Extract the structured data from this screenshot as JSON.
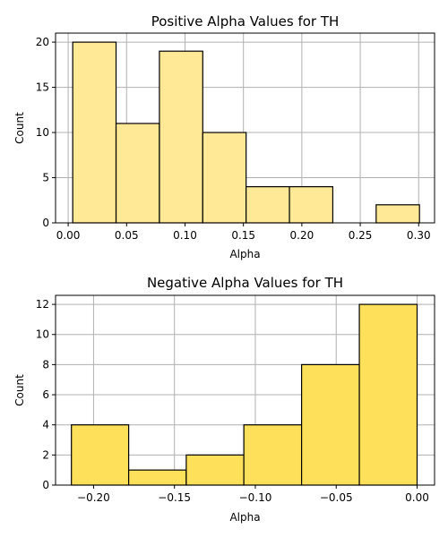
{
  "chart_data": [
    {
      "type": "bar",
      "title": "Positive Alpha Values for TH",
      "xlabel": "Alpha",
      "ylabel": "Count",
      "xlim": [
        -0.0108,
        0.3136
      ],
      "ylim": [
        0,
        21
      ],
      "xticks": [
        0.0,
        0.05,
        0.1,
        0.15,
        0.2,
        0.25,
        0.3
      ],
      "xtick_labels": [
        "0.00",
        "0.05",
        "0.10",
        "0.15",
        "0.20",
        "0.25",
        "0.30"
      ],
      "yticks": [
        0,
        5,
        10,
        15,
        20
      ],
      "ytick_labels": [
        "0",
        "5",
        "10",
        "15",
        "20"
      ],
      "grid": true,
      "color": "#ffe896",
      "bins": [
        {
          "x0": 0.0039,
          "x1": 0.041,
          "value": 20
        },
        {
          "x0": 0.041,
          "x1": 0.0781,
          "value": 11
        },
        {
          "x0": 0.0781,
          "x1": 0.1152,
          "value": 19
        },
        {
          "x0": 0.1152,
          "x1": 0.1523,
          "value": 10
        },
        {
          "x0": 0.1523,
          "x1": 0.1894,
          "value": 4
        },
        {
          "x0": 0.1894,
          "x1": 0.2265,
          "value": 4
        },
        {
          "x0": 0.2265,
          "x1": 0.2636,
          "value": 0
        },
        {
          "x0": 0.2636,
          "x1": 0.3007,
          "value": 2
        }
      ]
    },
    {
      "type": "bar",
      "title": "Negative Alpha Values for TH",
      "xlabel": "Alpha",
      "ylabel": "Count",
      "xlim": [
        -0.2235,
        0.0108
      ],
      "ylim": [
        0,
        12.6
      ],
      "xticks": [
        -0.2,
        -0.15,
        -0.1,
        -0.05,
        0.0
      ],
      "xtick_labels": [
        "−0.20",
        "−0.15",
        "−0.10",
        "−0.05",
        "0.00"
      ],
      "yticks": [
        0,
        2,
        4,
        6,
        8,
        10,
        12
      ],
      "ytick_labels": [
        "0",
        "2",
        "4",
        "6",
        "8",
        "10",
        "12"
      ],
      "grid": true,
      "color": "#ffe05a",
      "bins": [
        {
          "x0": -0.2137,
          "x1": -0.1783,
          "value": 4
        },
        {
          "x0": -0.1783,
          "x1": -0.1427,
          "value": 1
        },
        {
          "x0": -0.1427,
          "x1": -0.1071,
          "value": 2
        },
        {
          "x0": -0.1071,
          "x1": -0.0714,
          "value": 4
        },
        {
          "x0": -0.0714,
          "x1": -0.0357,
          "value": 8
        },
        {
          "x0": -0.0357,
          "x1": 0.0,
          "value": 12
        }
      ]
    }
  ]
}
